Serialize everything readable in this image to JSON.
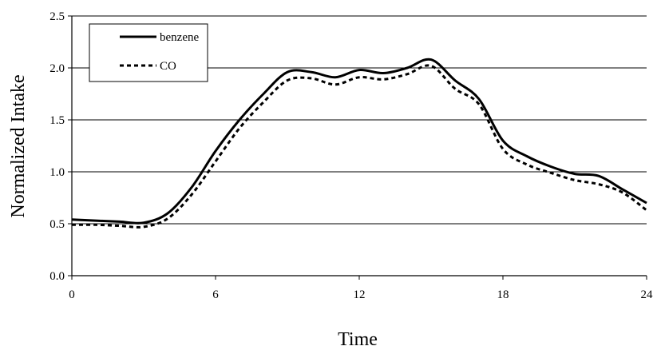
{
  "chart_data": {
    "type": "line",
    "title": "",
    "xlabel": "Time",
    "ylabel": "Normalized Intake",
    "xlim": [
      0,
      24
    ],
    "ylim": [
      0,
      2.5
    ],
    "xticks": [
      0,
      6,
      12,
      18,
      24
    ],
    "xtick_labels": [
      "0",
      "6",
      "12",
      "18",
      "24"
    ],
    "yticks": [
      0,
      0.5,
      1.0,
      1.5,
      2.0,
      2.5
    ],
    "ytick_labels": [
      "0.0",
      "0.5",
      "1.0",
      "1.5",
      "2.0",
      "2.5"
    ],
    "grid": "horizontal",
    "legend_position": "top-left",
    "series": [
      {
        "name": "benzene",
        "style": "solid",
        "color": "#000000",
        "x": [
          0,
          1,
          2,
          3,
          4,
          5,
          6,
          7,
          8,
          9,
          10,
          11,
          12,
          13,
          14,
          15,
          16,
          17,
          18,
          19,
          20,
          21,
          22,
          23,
          24
        ],
        "y": [
          0.54,
          0.53,
          0.52,
          0.51,
          0.6,
          0.85,
          1.2,
          1.5,
          1.75,
          1.96,
          1.96,
          1.91,
          1.98,
          1.95,
          2.0,
          2.08,
          1.88,
          1.7,
          1.3,
          1.15,
          1.05,
          0.98,
          0.96,
          0.83,
          0.7
        ]
      },
      {
        "name": "CO",
        "style": "dashed",
        "color": "#000000",
        "x": [
          0,
          1,
          2,
          3,
          4,
          5,
          6,
          7,
          8,
          9,
          10,
          11,
          12,
          13,
          14,
          15,
          16,
          17,
          18,
          19,
          20,
          21,
          22,
          23,
          24
        ],
        "y": [
          0.49,
          0.49,
          0.48,
          0.47,
          0.55,
          0.78,
          1.1,
          1.42,
          1.67,
          1.88,
          1.9,
          1.84,
          1.91,
          1.89,
          1.94,
          2.02,
          1.8,
          1.65,
          1.22,
          1.07,
          0.99,
          0.92,
          0.88,
          0.8,
          0.63
        ]
      }
    ]
  }
}
